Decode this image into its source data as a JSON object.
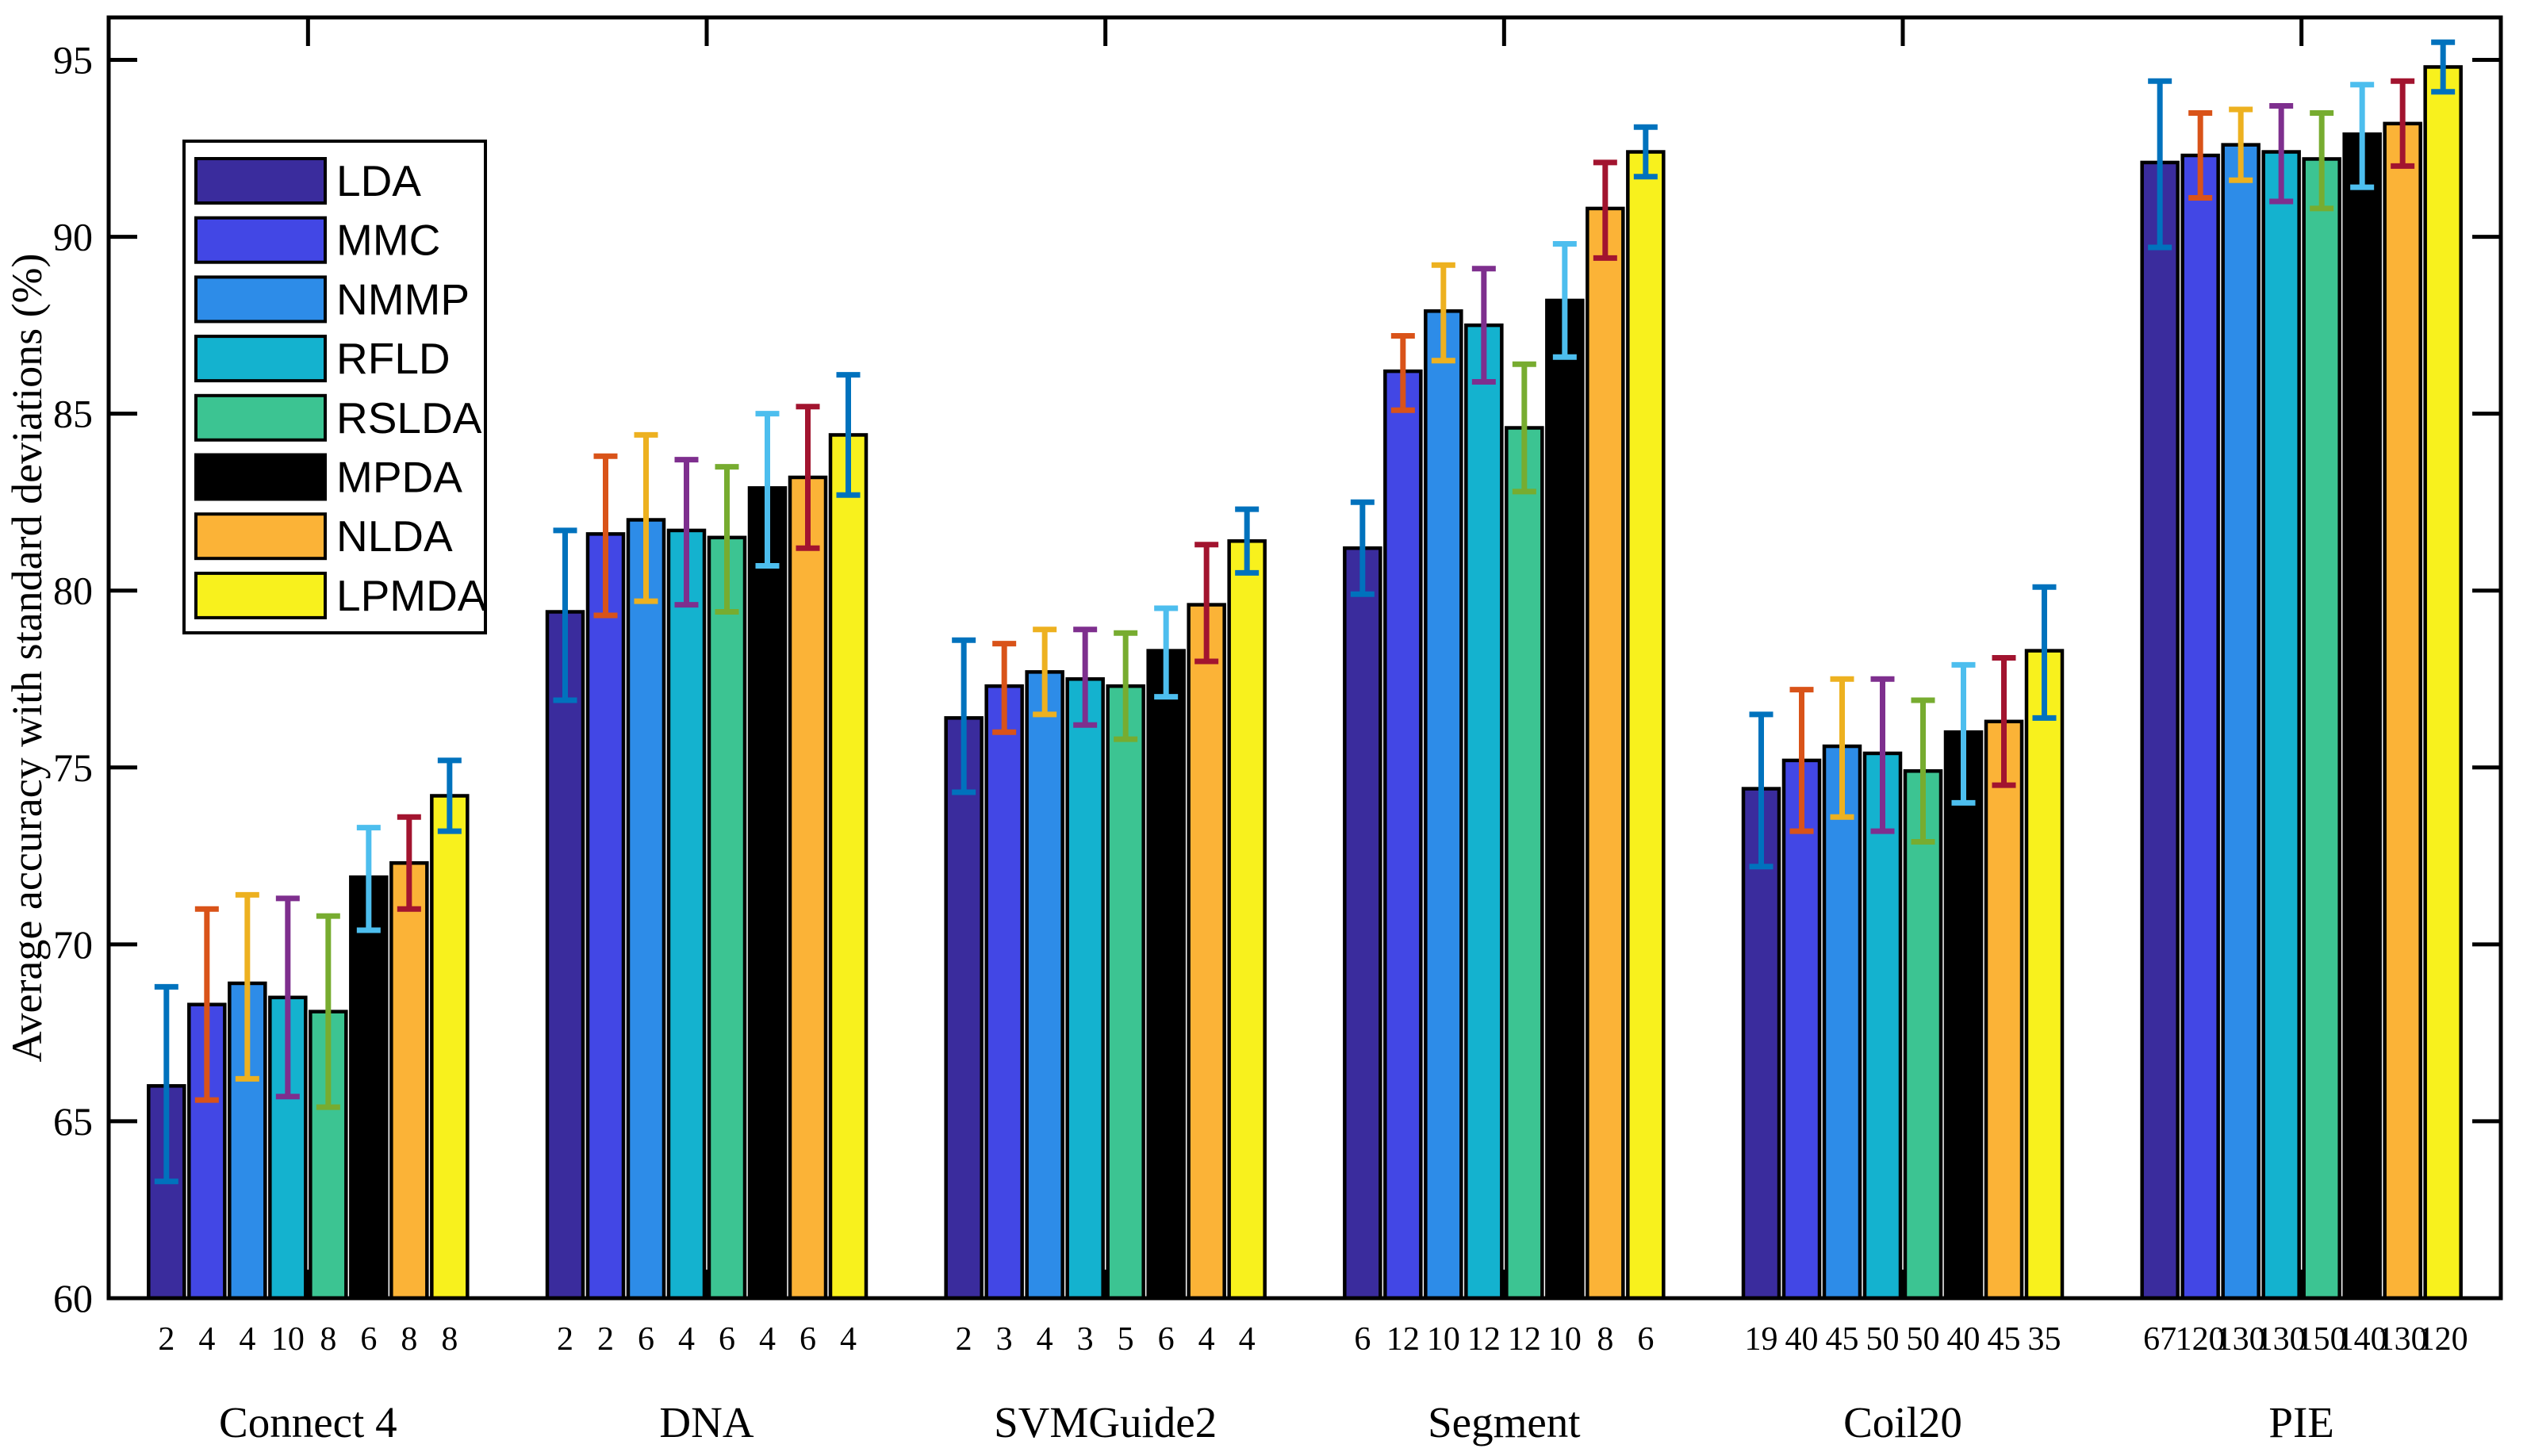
{
  "figure": {
    "background": "#ffffff",
    "frame_color": "#000000",
    "text_color": "#000000",
    "dim_label_color": "#F9A9C0",
    "ylabel": "Average accuracy with standard deviations (%)"
  },
  "legend": {
    "background": "#ffffff",
    "border_color": "#000000",
    "entries": [
      "LDA",
      "MMC",
      "NMMP",
      "RFLD",
      "RSLDA",
      "MPDA",
      "NLDA",
      "LPMDA"
    ]
  },
  "chart_data": {
    "type": "bar",
    "title": "",
    "xlabel": "",
    "ylabel": "Average accuracy with standard deviations (%)",
    "ylim": [
      60,
      96.2
    ],
    "yticks": [
      60,
      65,
      70,
      75,
      80,
      85,
      90,
      95
    ],
    "grid": false,
    "legend_position": "upper-left",
    "error_bars": true,
    "categories": [
      "Connect 4",
      "DNA",
      "SVMGuide2",
      "Segment",
      "Coil20",
      "PIE"
    ],
    "series": [
      {
        "name": "LDA",
        "color": "#3A2C9D",
        "error_color": "#0072BD",
        "values": [
          66.0,
          79.4,
          76.4,
          81.2,
          74.4,
          92.1
        ],
        "err_lo": [
          63.3,
          76.9,
          74.3,
          79.9,
          72.2,
          89.7
        ],
        "err_hi": [
          68.8,
          81.7,
          78.6,
          82.5,
          76.5,
          94.4
        ],
        "dims": [
          2,
          2,
          2,
          6,
          19,
          67
        ]
      },
      {
        "name": "MMC",
        "color": "#4247E5",
        "error_color": "#D95319",
        "values": [
          68.3,
          81.6,
          77.3,
          86.2,
          75.2,
          92.3
        ],
        "err_lo": [
          65.6,
          79.3,
          76.0,
          85.1,
          73.2,
          91.1
        ],
        "err_hi": [
          71.0,
          83.8,
          78.5,
          87.2,
          77.2,
          93.5
        ],
        "dims": [
          4,
          2,
          3,
          12,
          40,
          120
        ]
      },
      {
        "name": "NMMP",
        "color": "#2D8CE8",
        "error_color": "#EDB120",
        "values": [
          68.9,
          82.0,
          77.7,
          87.9,
          75.6,
          92.6
        ],
        "err_lo": [
          66.2,
          79.7,
          76.5,
          86.5,
          73.6,
          91.6
        ],
        "err_hi": [
          71.4,
          84.4,
          78.9,
          89.2,
          77.5,
          93.6
        ],
        "dims": [
          4,
          6,
          4,
          10,
          45,
          130
        ]
      },
      {
        "name": "RFLD",
        "color": "#14B2CF",
        "error_color": "#7E2F8E",
        "values": [
          68.5,
          81.7,
          77.5,
          87.5,
          75.4,
          92.4
        ],
        "err_lo": [
          65.7,
          79.6,
          76.2,
          85.9,
          73.2,
          91.0
        ],
        "err_hi": [
          71.3,
          83.7,
          78.9,
          89.1,
          77.5,
          93.7
        ],
        "dims": [
          10,
          4,
          3,
          12,
          50,
          130
        ]
      },
      {
        "name": "RSLDA",
        "color": "#3CC492",
        "error_color": "#77AC30",
        "values": [
          68.1,
          81.5,
          77.3,
          84.6,
          74.9,
          92.2
        ],
        "err_lo": [
          65.4,
          79.4,
          75.8,
          82.8,
          72.9,
          90.8
        ],
        "err_hi": [
          70.8,
          83.5,
          78.8,
          86.4,
          76.9,
          93.5
        ],
        "dims": [
          8,
          6,
          5,
          12,
          50,
          150
        ]
      },
      {
        "name": "MPDA",
        "color": "#000000",
        "error_color": "#4DBEEE",
        "values": [
          71.9,
          82.9,
          78.3,
          88.2,
          76.0,
          92.9
        ],
        "err_lo": [
          70.4,
          80.7,
          77.0,
          86.6,
          74.0,
          91.4
        ],
        "err_hi": [
          73.3,
          85.0,
          79.5,
          89.8,
          77.9,
          94.3
        ],
        "dims": [
          6,
          4,
          6,
          10,
          40,
          140
        ]
      },
      {
        "name": "NLDA",
        "color": "#FBB337",
        "error_color": "#A2142F",
        "values": [
          72.3,
          83.2,
          79.6,
          90.8,
          76.3,
          93.2
        ],
        "err_lo": [
          71.0,
          81.2,
          78.0,
          89.4,
          74.5,
          92.0
        ],
        "err_hi": [
          73.6,
          85.2,
          81.3,
          92.1,
          78.1,
          94.4
        ],
        "dims": [
          8,
          6,
          4,
          8,
          45,
          130
        ]
      },
      {
        "name": "LPMDA",
        "color": "#F8F11D",
        "error_color": "#0072BD",
        "values": [
          74.2,
          84.4,
          81.4,
          92.4,
          78.3,
          94.8
        ],
        "err_lo": [
          73.2,
          82.7,
          80.5,
          91.7,
          76.4,
          94.1
        ],
        "err_hi": [
          75.2,
          86.1,
          82.3,
          93.1,
          80.1,
          95.5
        ],
        "dims": [
          8,
          4,
          4,
          6,
          35,
          120
        ]
      }
    ]
  }
}
